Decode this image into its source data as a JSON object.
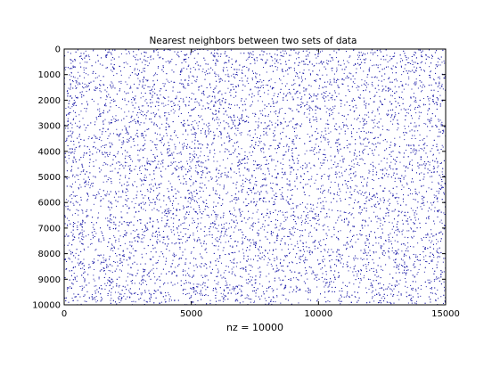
{
  "chart_data": {
    "type": "scatter",
    "subtype": "sparsity-pattern (spy plot)",
    "title": "Nearest neighbors between two sets of data",
    "xlabel": "nz = 10000",
    "ylabel": "",
    "xlim": [
      0,
      15000
    ],
    "ylim": [
      0,
      10000
    ],
    "y_axis_reversed": true,
    "xticks": [
      0,
      5000,
      10000,
      15000
    ],
    "yticks": [
      0,
      1000,
      2000,
      3000,
      4000,
      5000,
      6000,
      7000,
      8000,
      9000,
      10000
    ],
    "grid": false,
    "legend": "none",
    "nonzeros": 10000,
    "point_distribution": "approximately uniform random over the full matrix",
    "colors": {
      "marker": "#1a1aa6",
      "plot_background": "#ffffff",
      "figure_background": "#ffffff",
      "axes": "#000000"
    }
  }
}
